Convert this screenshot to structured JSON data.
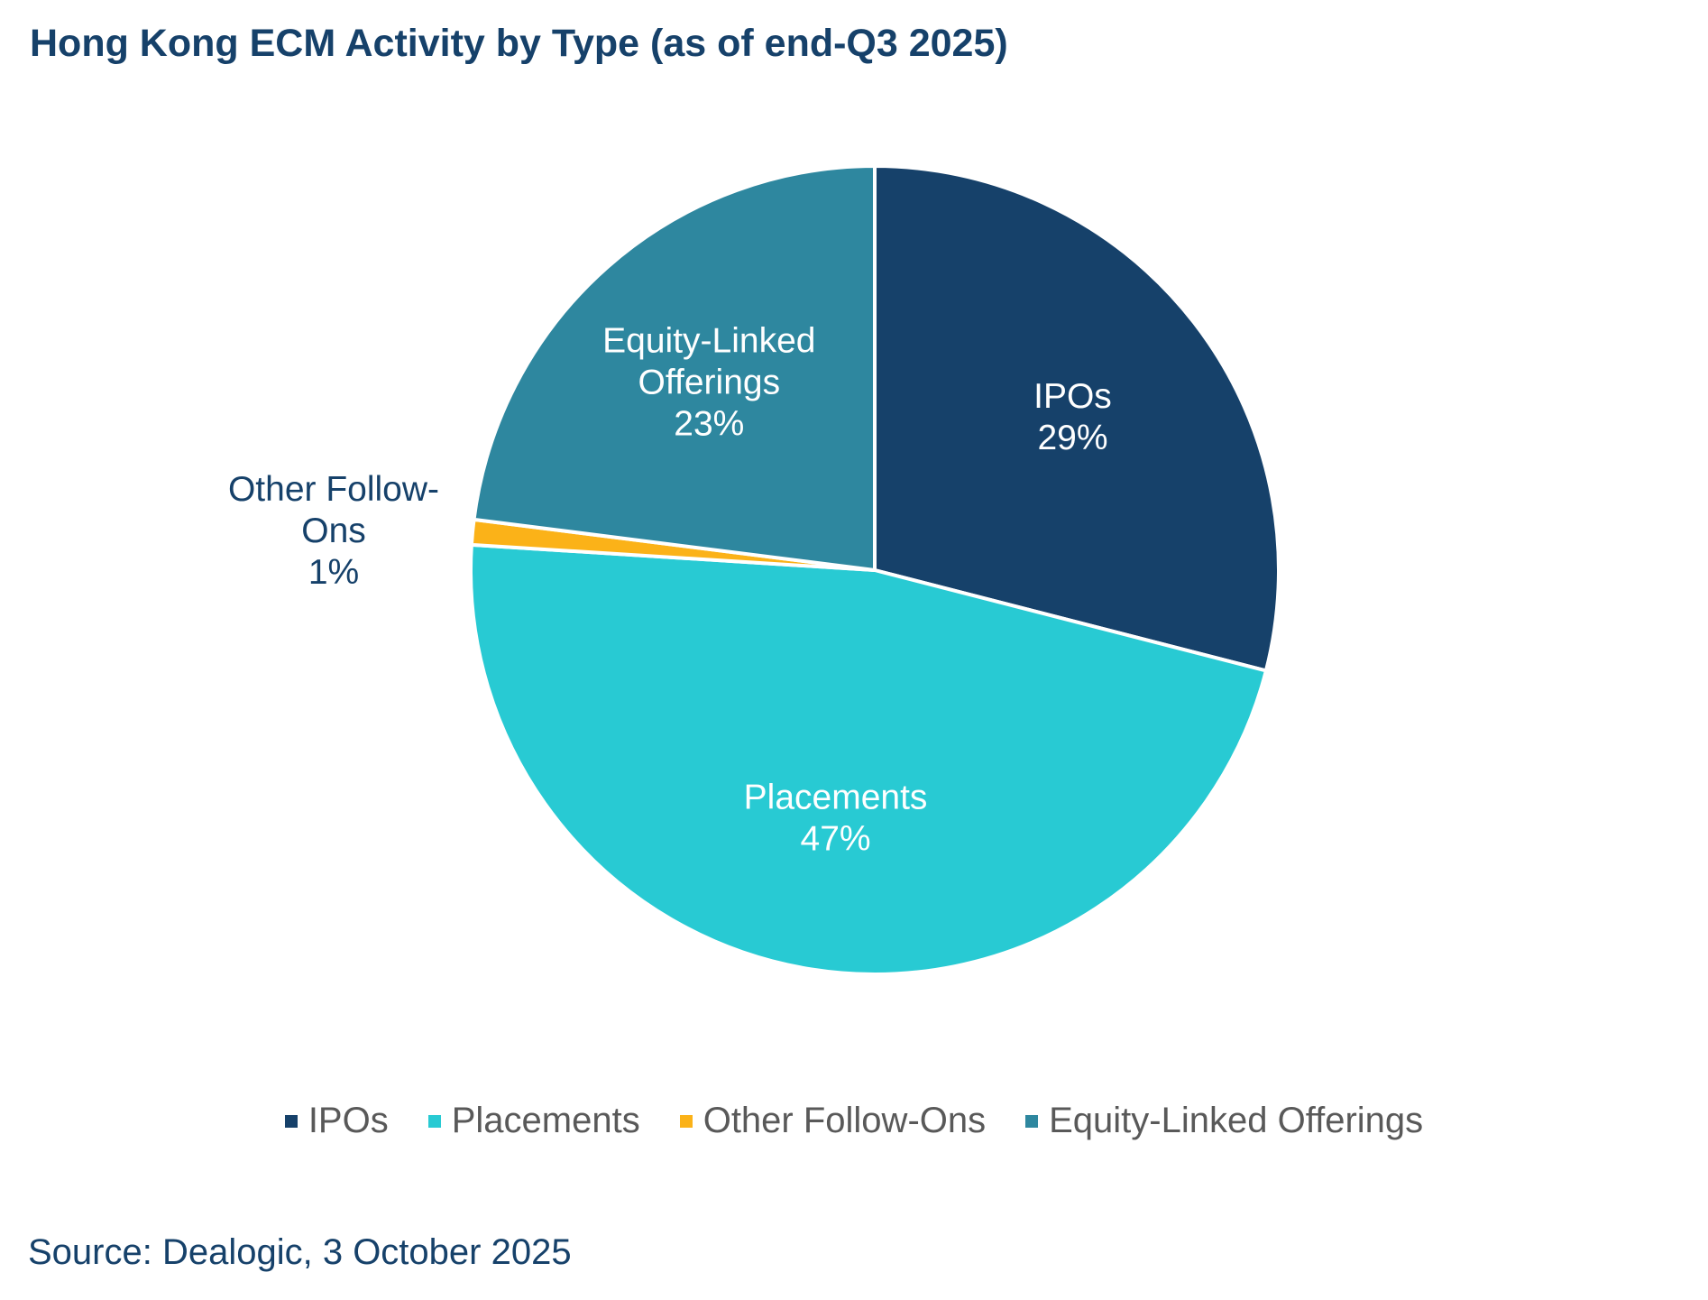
{
  "chart_data": {
    "type": "pie",
    "title": "Hong Kong ECM Activity by Type (as of end-Q3 2025)",
    "slices": [
      {
        "name": "IPOs",
        "label_lines": [
          "IPOs"
        ],
        "value": 29,
        "value_label": "29%",
        "color": "#16416a",
        "label_color": "#ffffff",
        "label_placement": "inside"
      },
      {
        "name": "Placements",
        "label_lines": [
          "Placements"
        ],
        "value": 47,
        "value_label": "47%",
        "color": "#28cad3",
        "label_color": "#ffffff",
        "label_placement": "inside"
      },
      {
        "name": "Other Follow-Ons",
        "label_lines": [
          "Other Follow-",
          "Ons"
        ],
        "value": 1,
        "value_label": "1%",
        "color": "#fbb218",
        "label_color": "#16416a",
        "label_placement": "outside-left"
      },
      {
        "name": "Equity-Linked Offerings",
        "label_lines": [
          "Equity-Linked",
          "Offerings"
        ],
        "value": 23,
        "value_label": "23%",
        "color": "#2e879f",
        "label_color": "#ffffff",
        "label_placement": "inside"
      }
    ],
    "start_angle": "12 o'clock, clockwise",
    "legend": {
      "position": "bottom",
      "entries": [
        "IPOs",
        "Placements",
        "Other Follow-Ons",
        "Equity-Linked Offerings"
      ]
    },
    "source": "Source: Dealogic, 3 October 2025"
  }
}
